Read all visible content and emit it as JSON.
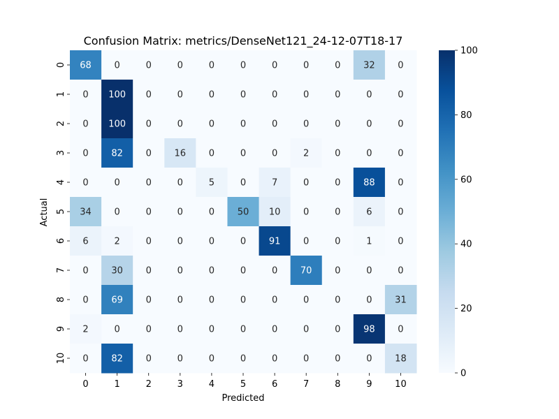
{
  "chart_data": {
    "type": "heatmap",
    "title": "Confusion Matrix: metrics/DenseNet121_24-12-07T18-17",
    "xlabel": "Predicted",
    "ylabel": "Actual",
    "x_categories": [
      "0",
      "1",
      "2",
      "3",
      "4",
      "5",
      "6",
      "7",
      "8",
      "9",
      "10"
    ],
    "y_categories": [
      "0",
      "1",
      "2",
      "3",
      "4",
      "5",
      "6",
      "7",
      "8",
      "9",
      "10"
    ],
    "values": [
      [
        68,
        0,
        0,
        0,
        0,
        0,
        0,
        0,
        0,
        32,
        0
      ],
      [
        0,
        100,
        0,
        0,
        0,
        0,
        0,
        0,
        0,
        0,
        0
      ],
      [
        0,
        100,
        0,
        0,
        0,
        0,
        0,
        0,
        0,
        0,
        0
      ],
      [
        0,
        82,
        0,
        16,
        0,
        0,
        0,
        2,
        0,
        0,
        0
      ],
      [
        0,
        0,
        0,
        0,
        5,
        0,
        7,
        0,
        0,
        88,
        0
      ],
      [
        34,
        0,
        0,
        0,
        0,
        50,
        10,
        0,
        0,
        6,
        0
      ],
      [
        6,
        2,
        0,
        0,
        0,
        0,
        91,
        0,
        0,
        1,
        0
      ],
      [
        0,
        30,
        0,
        0,
        0,
        0,
        0,
        70,
        0,
        0,
        0
      ],
      [
        0,
        69,
        0,
        0,
        0,
        0,
        0,
        0,
        0,
        0,
        31
      ],
      [
        2,
        0,
        0,
        0,
        0,
        0,
        0,
        0,
        0,
        98,
        0
      ],
      [
        0,
        82,
        0,
        0,
        0,
        0,
        0,
        0,
        0,
        0,
        18
      ]
    ],
    "colormap": "Blues",
    "vmin": 0,
    "vmax": 100,
    "colorbar_ticks": [
      0,
      20,
      40,
      60,
      80,
      100
    ],
    "annotations": true
  }
}
